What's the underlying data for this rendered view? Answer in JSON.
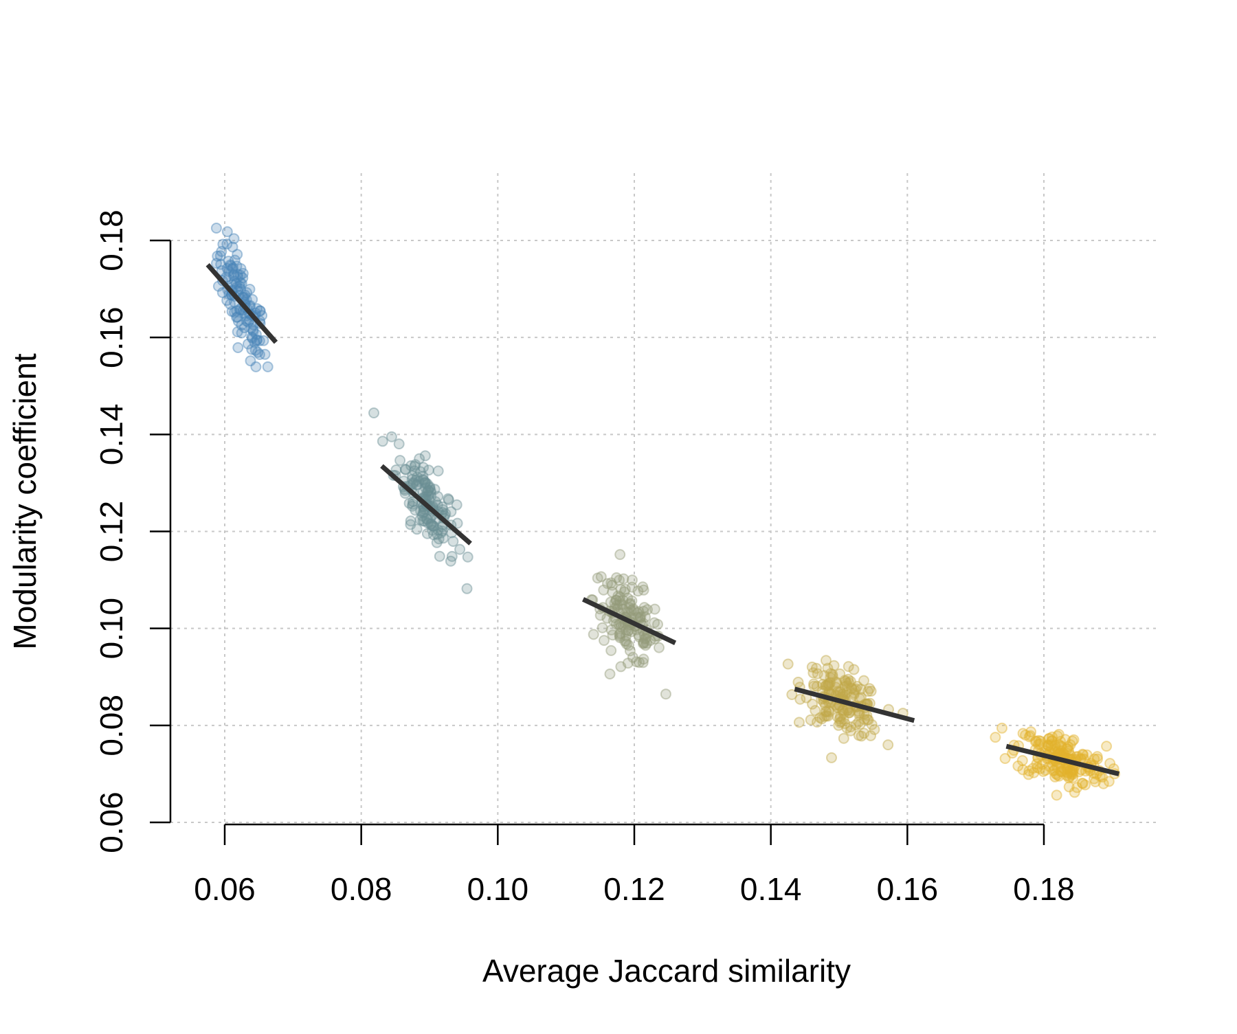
{
  "chart_data": {
    "type": "scatter",
    "title": "",
    "xlabel": "Average Jaccard similarity",
    "ylabel": "Modularity coefficient",
    "xlim": [
      0.053,
      0.197
    ],
    "ylim": [
      0.06,
      0.19
    ],
    "x_ticks": [
      "0.06",
      "0.08",
      "0.10",
      "0.12",
      "0.14",
      "0.16",
      "0.18"
    ],
    "y_ticks": [
      "0.06",
      "0.08",
      "0.10",
      "0.12",
      "0.14",
      "0.16",
      "0.18"
    ],
    "grid": true,
    "legend": "none",
    "series": [
      {
        "color": "#4a86b8",
        "x_center": 0.0625,
        "x_sd": 0.0018,
        "y_center": 0.167,
        "y_sd": 0.0065,
        "slope_per_sd": -0.78,
        "n_points": 120,
        "fit_line": {
          "x": [
            0.0575,
            0.0675
          ],
          "y": [
            0.175,
            0.159
          ]
        }
      },
      {
        "color": "#6b8f94",
        "x_center": 0.0895,
        "x_sd": 0.0022,
        "y_center": 0.1265,
        "y_sd": 0.0055,
        "slope_per_sd": -0.7,
        "n_points": 140,
        "fit_line": {
          "x": [
            0.083,
            0.096
          ],
          "y": [
            0.1335,
            0.1175
          ]
        }
      },
      {
        "color": "#959c7a",
        "x_center": 0.119,
        "x_sd": 0.0025,
        "y_center": 0.1015,
        "y_sd": 0.0045,
        "slope_per_sd": -0.5,
        "n_points": 140,
        "fit_line": {
          "x": [
            0.1125,
            0.126
          ],
          "y": [
            0.106,
            0.097
          ]
        }
      },
      {
        "color": "#c2a94a",
        "x_center": 0.1505,
        "x_sd": 0.0028,
        "y_center": 0.085,
        "y_sd": 0.0035,
        "slope_per_sd": -0.45,
        "n_points": 160,
        "fit_line": {
          "x": [
            0.1435,
            0.161
          ],
          "y": [
            0.0875,
            0.081
          ]
        }
      },
      {
        "color": "#e3b22d",
        "x_center": 0.1825,
        "x_sd": 0.0033,
        "y_center": 0.073,
        "y_sd": 0.003,
        "slope_per_sd": -0.45,
        "n_points": 180,
        "fit_line": {
          "x": [
            0.1745,
            0.191
          ],
          "y": [
            0.0757,
            0.07
          ]
        }
      }
    ]
  }
}
